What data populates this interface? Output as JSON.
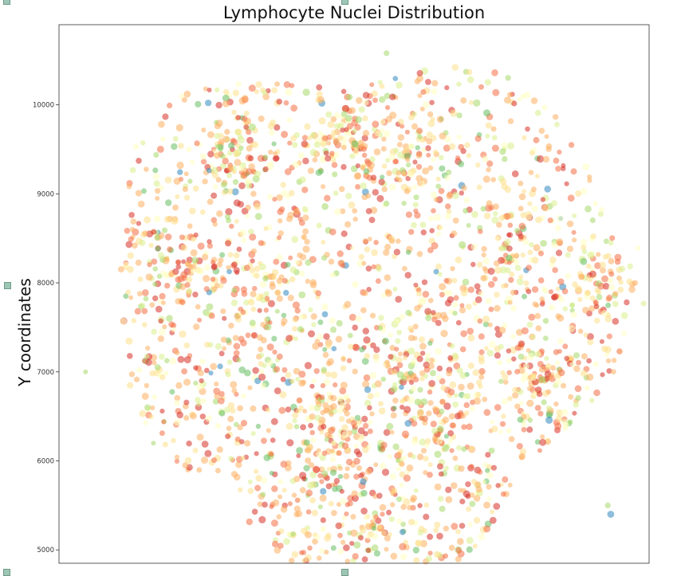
{
  "chart_data": {
    "type": "scatter",
    "title": "Lymphocyte Nuclei Distribution",
    "xlabel": "",
    "ylabel": "Y coordinates",
    "ylim": [
      4850,
      10900
    ],
    "yticks": [
      5000,
      6000,
      7000,
      8000,
      9000,
      10000
    ],
    "xlim": [
      0,
      10000
    ],
    "grid": false,
    "legend": "none",
    "colormap": [
      "#d73027",
      "#f46d43",
      "#fdae61",
      "#fee08b",
      "#ffffbf",
      "#d9ef8b",
      "#a6d96a",
      "#66bd63",
      "#1a9850",
      "#3288bd"
    ],
    "n_points": 2400,
    "clusters": [
      {
        "x": 3000,
        "y": 9400,
        "n": 70
      },
      {
        "x": 4800,
        "y": 9600,
        "n": 80
      },
      {
        "x": 6000,
        "y": 9500,
        "n": 55
      },
      {
        "x": 2200,
        "y": 8100,
        "n": 60
      },
      {
        "x": 3600,
        "y": 7900,
        "n": 55
      },
      {
        "x": 7600,
        "y": 8300,
        "n": 55
      },
      {
        "x": 9200,
        "y": 8000,
        "n": 45
      },
      {
        "x": 5900,
        "y": 7100,
        "n": 55
      },
      {
        "x": 8200,
        "y": 7000,
        "n": 60
      },
      {
        "x": 4700,
        "y": 6500,
        "n": 70
      },
      {
        "x": 6500,
        "y": 6400,
        "n": 60
      },
      {
        "x": 4500,
        "y": 5900,
        "n": 45
      },
      {
        "x": 5400,
        "y": 5300,
        "n": 35
      }
    ],
    "outliers": [
      {
        "x": 450,
        "y": 7000
      },
      {
        "x": 1600,
        "y": 6200
      },
      {
        "x": 1500,
        "y": 6600
      },
      {
        "x": 9300,
        "y": 5500
      },
      {
        "x": 9350,
        "y": 5400
      },
      {
        "x": 5550,
        "y": 10580
      },
      {
        "x": 3700,
        "y": 7680
      }
    ]
  },
  "colors": {
    "figure_bg": "#ffffff",
    "spine": "#333333"
  }
}
